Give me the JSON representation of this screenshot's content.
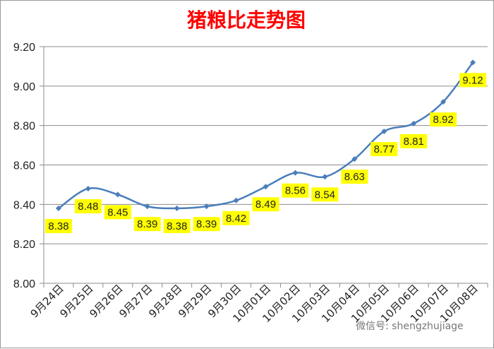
{
  "chart_data": {
    "type": "line",
    "title": "猪粮比走势图",
    "categories": [
      "9月24日",
      "9月25日",
      "9月26日",
      "9月27日",
      "9月28日",
      "9月29日",
      "9月30日",
      "10月01日",
      "10月02日",
      "10月03日",
      "10月04日",
      "10月05日",
      "10月06日",
      "10月07日",
      "10月08日"
    ],
    "values": [
      8.38,
      8.48,
      8.45,
      8.39,
      8.38,
      8.39,
      8.42,
      8.49,
      8.56,
      8.54,
      8.63,
      8.77,
      8.81,
      8.92,
      9.12
    ],
    "data_labels": [
      "8.38",
      "8.48",
      "8.45",
      "8.39",
      "8.38",
      "8.39",
      "8.42",
      "8.49",
      "8.56",
      "8.54",
      "8.63",
      "8.77",
      "8.81",
      "8.92",
      "9.12"
    ],
    "ylim": [
      8.0,
      9.2
    ],
    "yticks": [
      "8.00",
      "8.20",
      "8.40",
      "8.60",
      "8.80",
      "9.00",
      "9.20"
    ],
    "grid": true,
    "line_color": "#4a7ebb",
    "label_bg_color": "#ffff00"
  },
  "watermark": "微信号: shengzhujiage"
}
